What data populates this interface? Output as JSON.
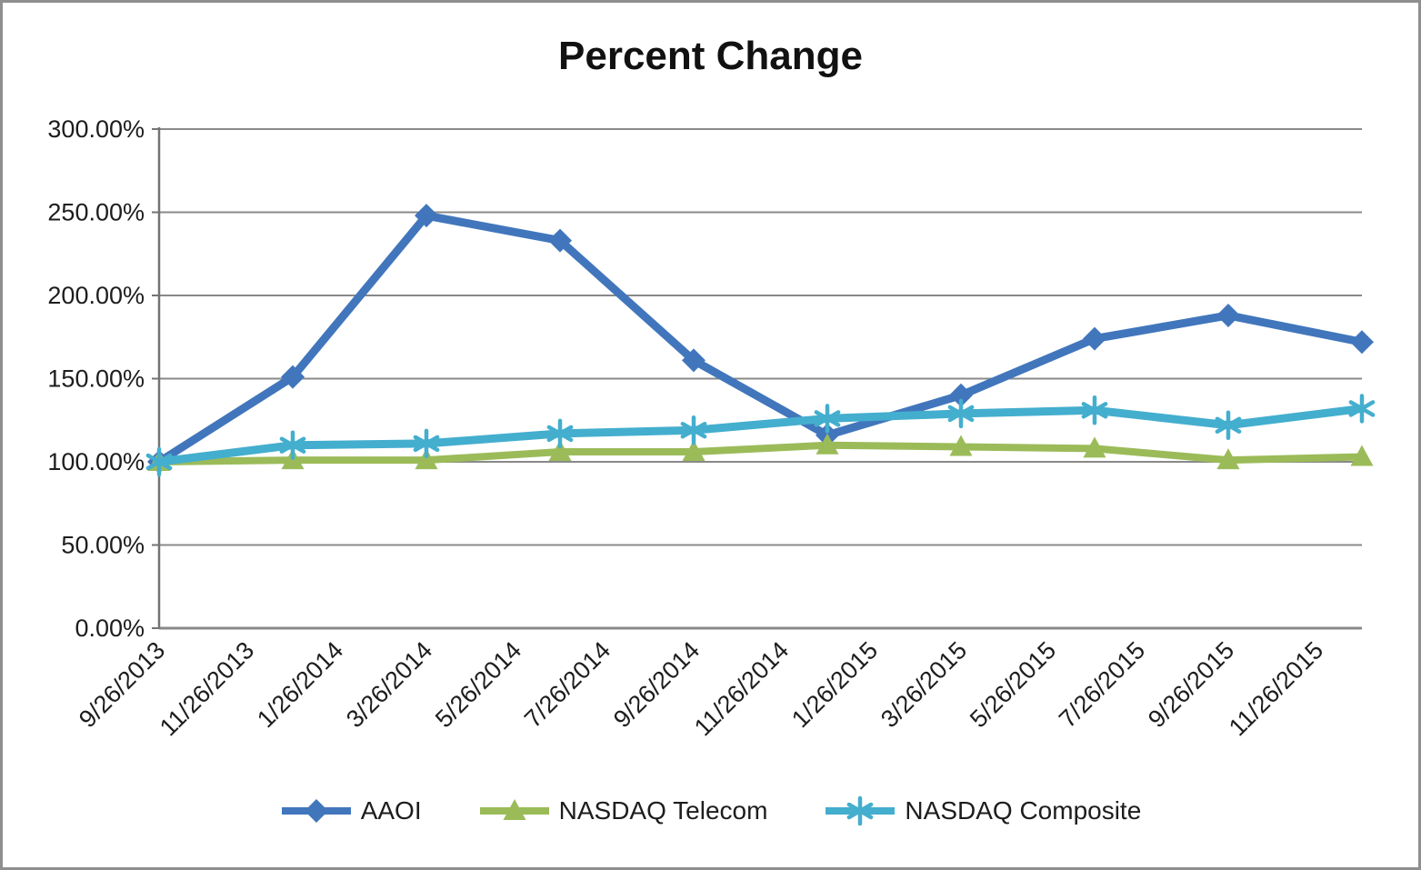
{
  "chart_data": {
    "type": "line",
    "title": "Percent Change",
    "xlabel": "",
    "ylabel": "",
    "grid": true,
    "legend_position": "bottom",
    "y_axis": {
      "min": 0,
      "max": 300,
      "step": 50,
      "unit": "%",
      "tick_labels": [
        "300.00%",
        "250.00%",
        "200.00%",
        "150.00%",
        "100.00%",
        "50.00%",
        "0.00%"
      ]
    },
    "x_axis": {
      "total_months": 27,
      "tick_months": [
        0,
        2,
        4,
        6,
        8,
        10,
        12,
        14,
        16,
        18,
        20,
        22,
        24,
        26
      ],
      "tick_labels": [
        "9/26/2013",
        "11/26/2013",
        "1/26/2014",
        "3/26/2014",
        "5/26/2014",
        "7/26/2014",
        "9/26/2014",
        "11/26/2014",
        "1/26/2015",
        "3/26/2015",
        "5/26/2015",
        "7/26/2015",
        "9/26/2015",
        "11/26/2015"
      ]
    },
    "series": [
      {
        "name": "AAOI",
        "marker": "diamond",
        "color": "#4176bc",
        "x_months": [
          0,
          3,
          6,
          9,
          12,
          15,
          18,
          21,
          24,
          27
        ],
        "values": [
          100,
          151,
          248,
          233,
          161,
          116,
          140,
          174,
          188,
          172
        ]
      },
      {
        "name": "NASDAQ Telecom",
        "marker": "triangle",
        "color": "#9bbb59",
        "x_months": [
          0,
          3,
          6,
          9,
          12,
          15,
          18,
          21,
          24,
          27
        ],
        "values": [
          100,
          101,
          101,
          106,
          106,
          110,
          109,
          108,
          101,
          103
        ]
      },
      {
        "name": "NASDAQ Composite",
        "marker": "asterisk",
        "color": "#44aece",
        "x_months": [
          0,
          3,
          6,
          9,
          12,
          15,
          18,
          21,
          24,
          27
        ],
        "values": [
          100,
          110,
          111,
          117,
          119,
          126,
          129,
          131,
          122,
          132
        ]
      }
    ]
  },
  "colors": {
    "background": "#ffffff",
    "frame_border": "#8f8f8f",
    "gridline": "#898989",
    "axis": "#737373",
    "text": "#1d1d1d",
    "title_text": "#111111"
  }
}
